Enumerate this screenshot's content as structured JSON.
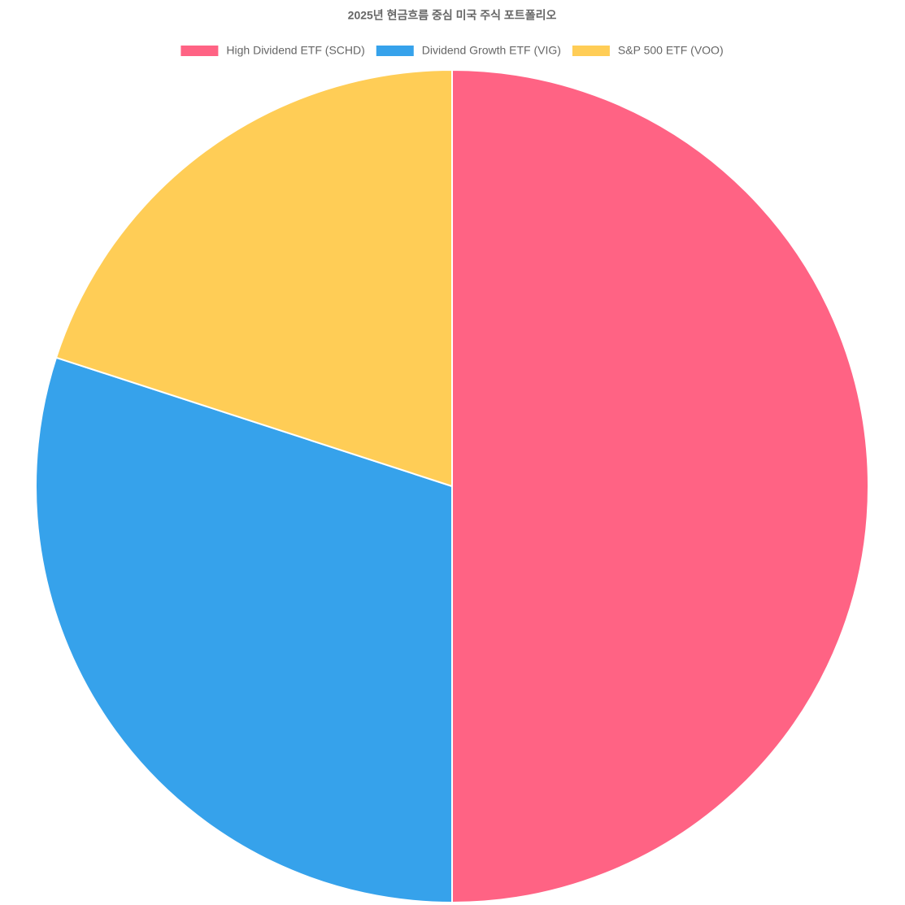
{
  "chart_data": {
    "type": "pie",
    "title": "2025년 현금흐름 중심 미국 주식 포트폴리오",
    "categories": [
      "High Dividend ETF (SCHD)",
      "Dividend Growth ETF (VIG)",
      "S&P 500 ETF (VOO)"
    ],
    "values": [
      50,
      30,
      20
    ],
    "colors": [
      "#ff6384",
      "#36a2eb",
      "#ffcd56"
    ],
    "legend": "top"
  }
}
